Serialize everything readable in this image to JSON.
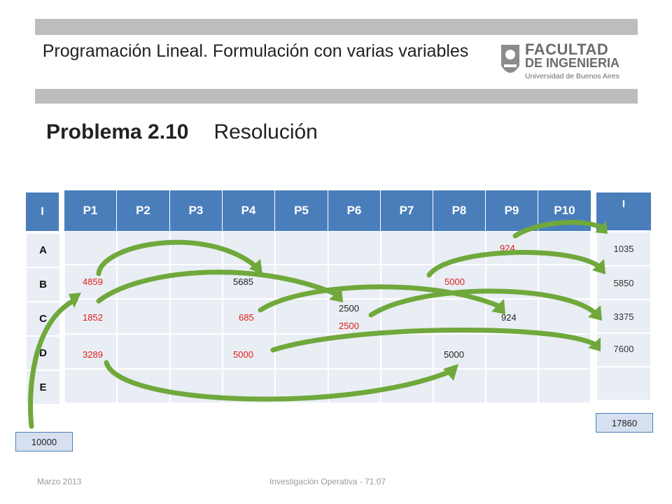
{
  "slide": {
    "title": "Programación Lineal. Formulación con varias variables",
    "logo": {
      "line1": "FACULTAD",
      "line2": "DE INGENIERIA",
      "line3": "Universidad de Buenos Aires"
    },
    "problem": "Problema 2.10",
    "subtitle": "Resolución"
  },
  "left_table": {
    "header": "I",
    "rows": [
      "A",
      "B",
      "C",
      "D",
      "E"
    ]
  },
  "main_table": {
    "headers": [
      "P1",
      "P2",
      "P3",
      "P4",
      "P5",
      "P6",
      "P7",
      "P8",
      "P9",
      "P10"
    ],
    "values": [
      {
        "text": "924",
        "color": "#e0201b"
      },
      {
        "text": "4859",
        "color": "#e0201b"
      },
      {
        "text": "5685",
        "color": "#222222"
      },
      {
        "text": "5000",
        "color": "#e0201b"
      },
      {
        "text": "1852",
        "color": "#e0201b"
      },
      {
        "text": "685",
        "color": "#e0201b"
      },
      {
        "text": "2500",
        "color": "#222222"
      },
      {
        "text": "2500",
        "color": "#e0201b"
      },
      {
        "text": "924",
        "color": "#222222"
      },
      {
        "text": "3289",
        "color": "#e0201b"
      },
      {
        "text": "5000",
        "color": "#e0201b"
      },
      {
        "text": "5000",
        "color": "#222222"
      }
    ]
  },
  "right_table": {
    "header": "I",
    "values": [
      "1035",
      "5850",
      "3375",
      "7600",
      ""
    ]
  },
  "totals": {
    "left": "10000",
    "right": "17860"
  },
  "footer": {
    "date": "Marzo 2013",
    "course": "Investigación Operativa - 71.07"
  },
  "colors": {
    "header_blue": "#4a7ebb",
    "cell_bg": "#e9edf4",
    "arrow_green": "#70a83c",
    "value_red": "#e0201b"
  }
}
